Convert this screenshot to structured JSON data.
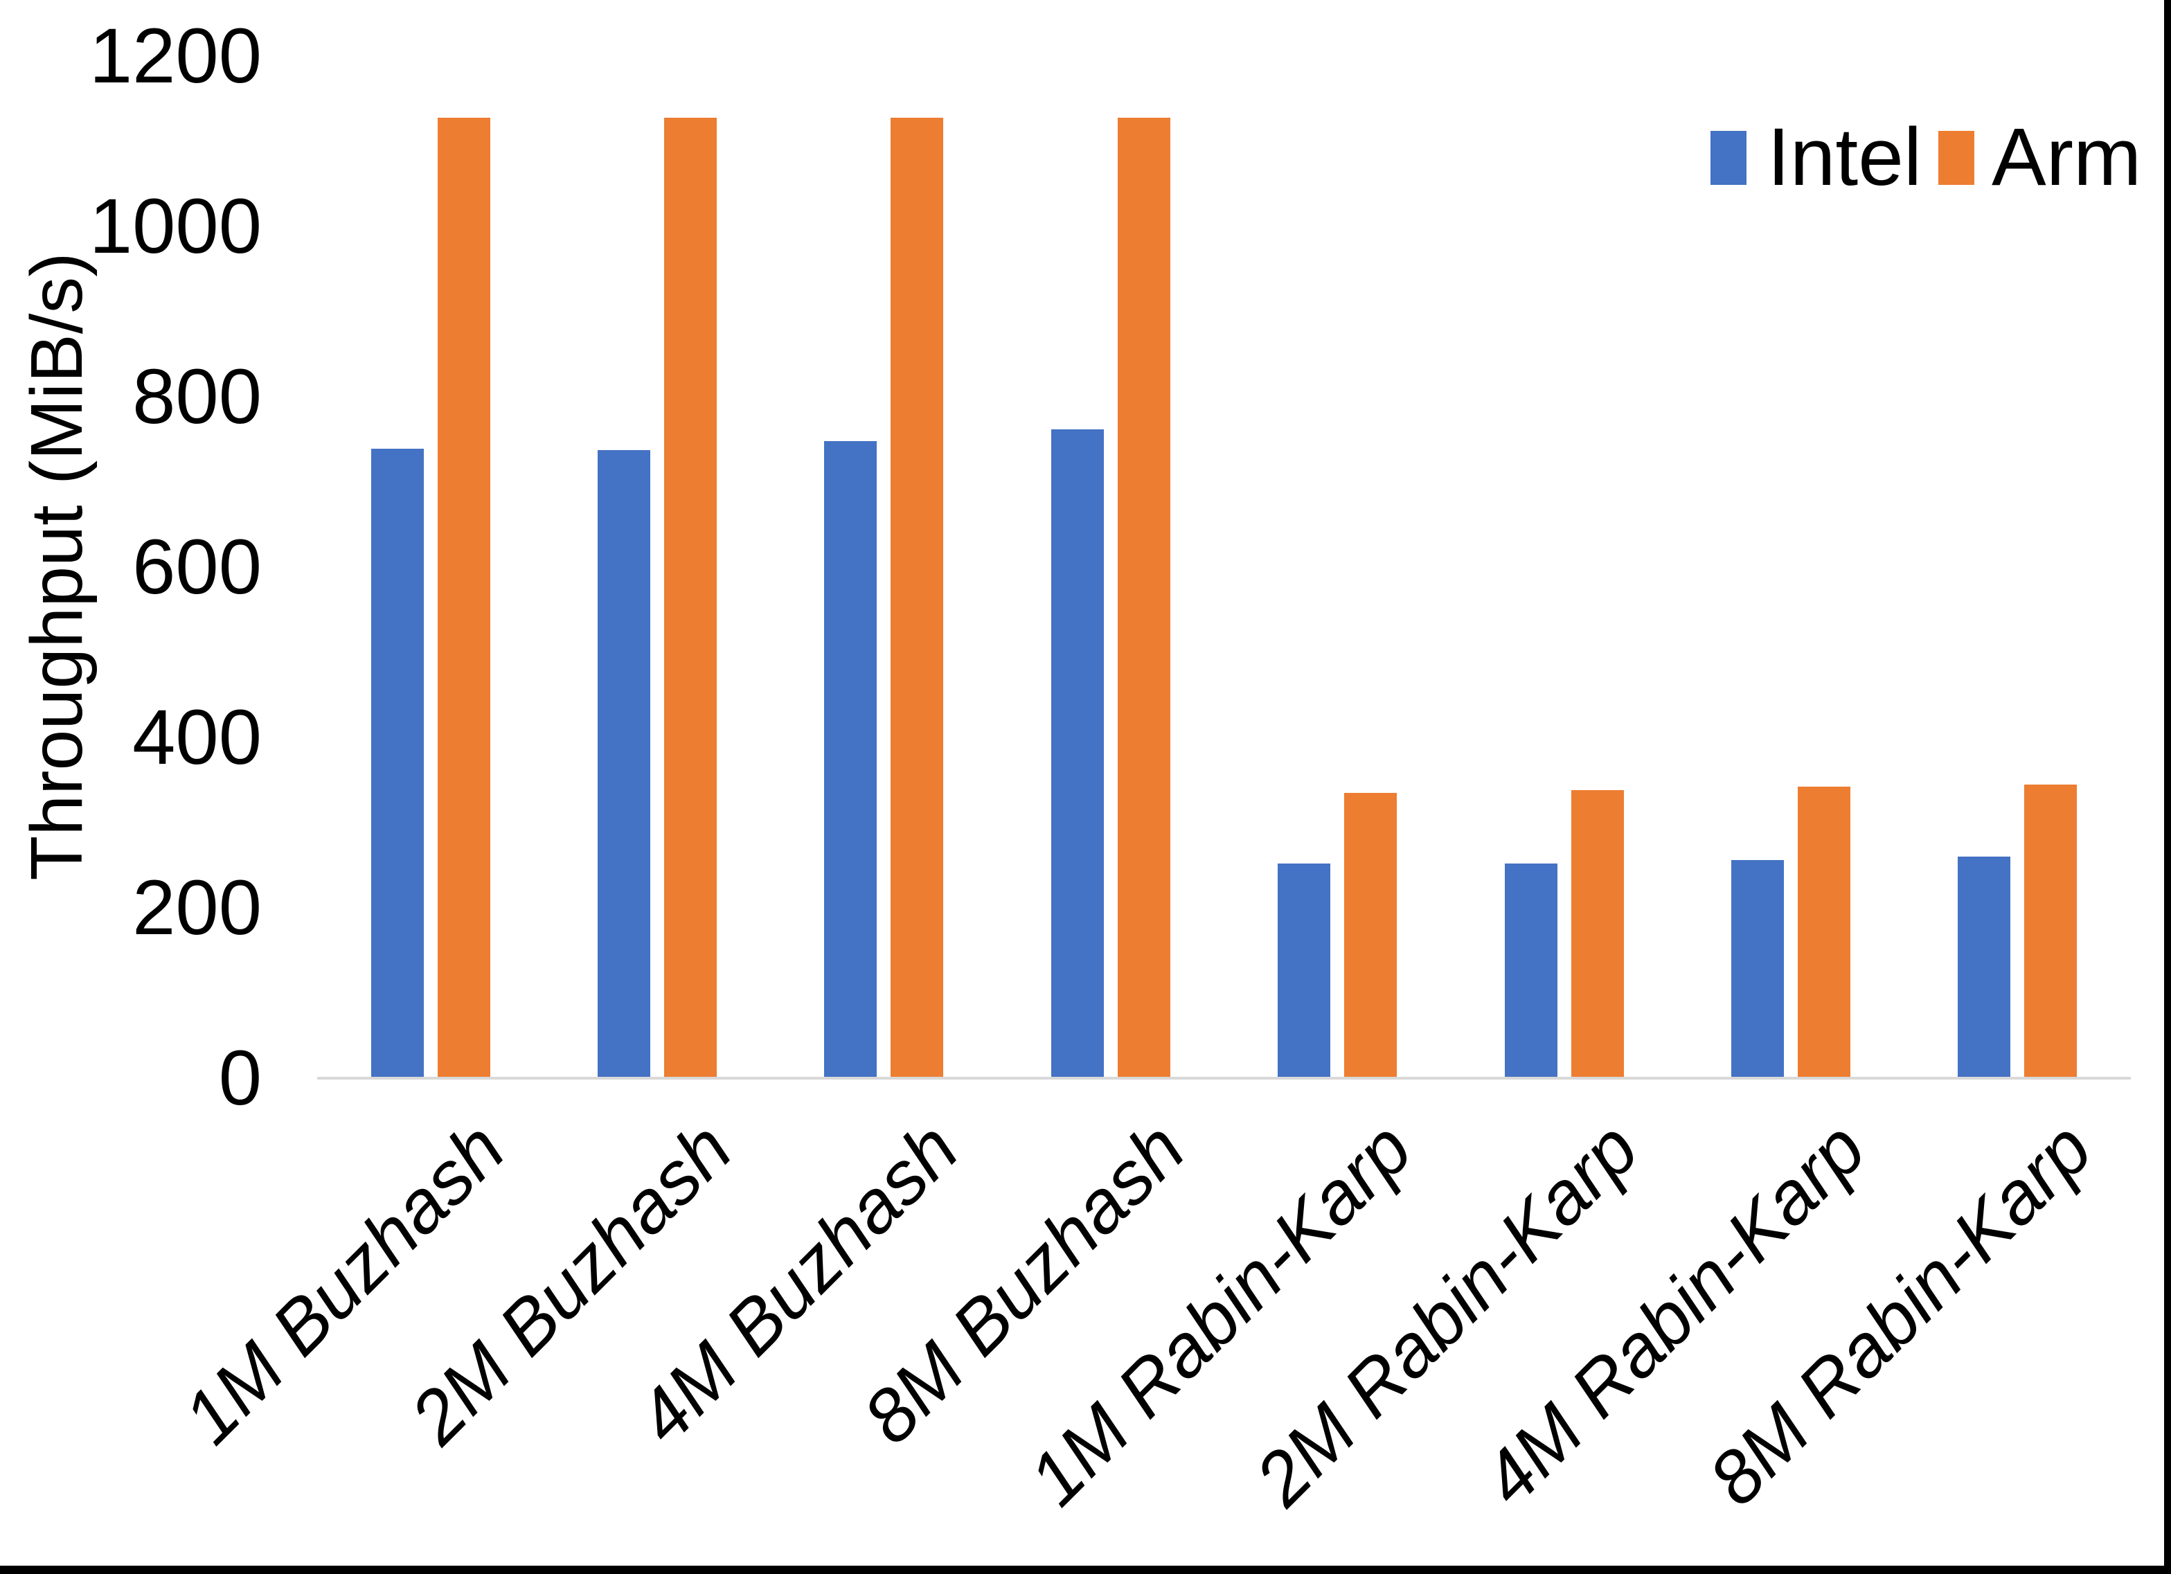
{
  "chart_data": {
    "type": "bar",
    "title": "",
    "xlabel": "",
    "ylabel": "Throughput (MiB/s)",
    "categories": [
      "1M Buzhash",
      "2M Buzhash",
      "4M Buzhash",
      "8M Buzhash",
      "1M Rabin-Karp",
      "2M Rabin-Karp",
      "4M Rabin-Karp",
      "8M Rabin-Karp"
    ],
    "series": [
      {
        "name": "Intel",
        "color": "#4472C4",
        "values": [
          739,
          737,
          748,
          762,
          252,
          252,
          256,
          260
        ]
      },
      {
        "name": "Arm",
        "color": "#ED7D31",
        "values": [
          1128,
          1128,
          1128,
          1128,
          335,
          338,
          342,
          345
        ]
      }
    ],
    "ylim": [
      0,
      1200
    ],
    "yticks": [
      0,
      200,
      400,
      600,
      800,
      1000,
      1200
    ],
    "grid": "off",
    "legend_position": "top-right",
    "axis_line_color": "#D9D9D9"
  },
  "frame": {
    "background": "#FFFFFF",
    "right_border_color": "#000000",
    "bottom_border_color": "#000000"
  }
}
